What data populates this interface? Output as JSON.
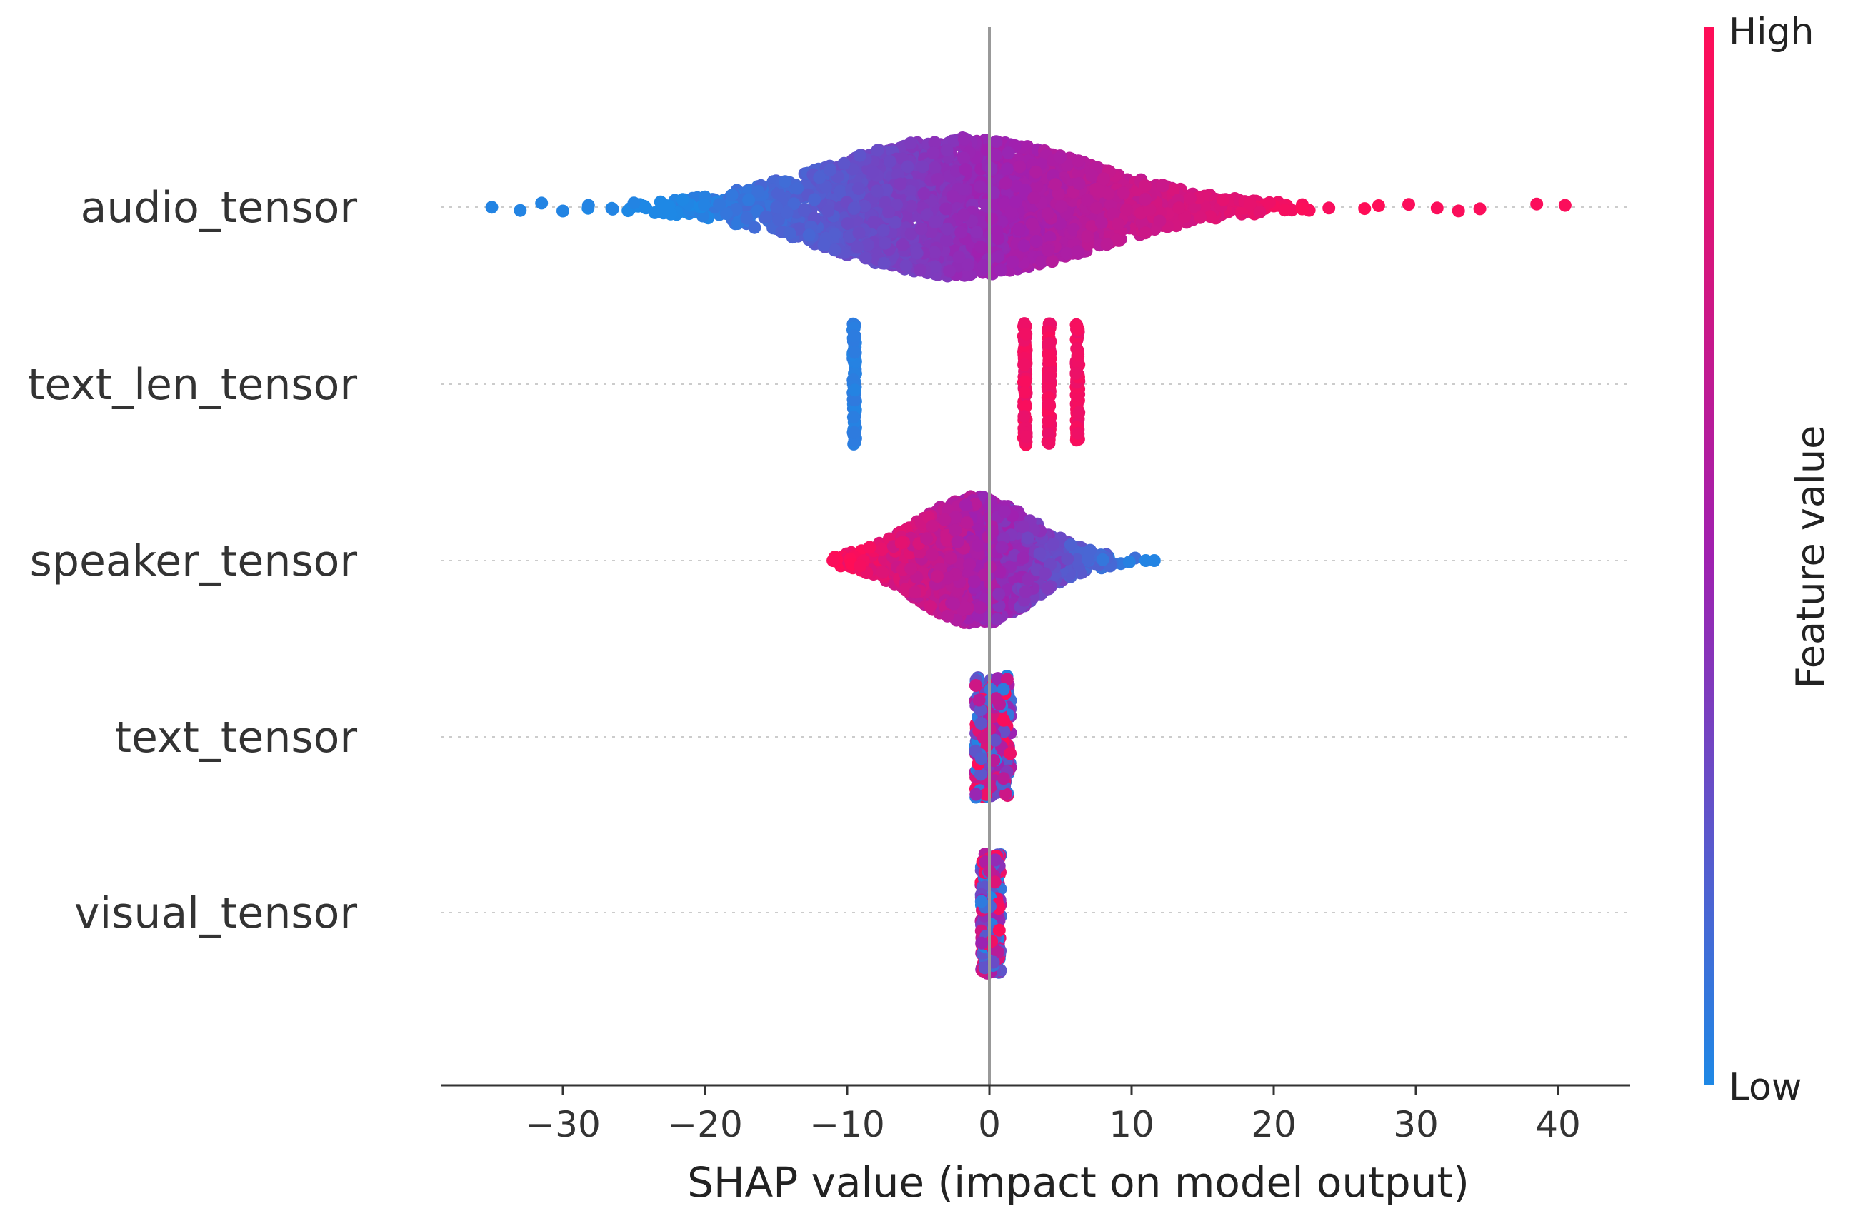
{
  "chart_data": {
    "type": "scatter",
    "subtype": "shap-beeswarm",
    "xlabel": "SHAP value (impact on model output)",
    "xlim": [
      -38.5,
      45
    ],
    "xticks": [
      -30,
      -20,
      -10,
      0,
      10,
      20,
      30,
      40
    ],
    "xtick_labels": [
      "−30",
      "−20",
      "−10",
      "0",
      "10",
      "20",
      "30",
      "40"
    ],
    "colorbar": {
      "title": "Feature value",
      "high_label": "High",
      "low_label": "Low",
      "low_color": "#1E88E5",
      "mid_color": "#A020B0",
      "high_color": "#FF0D57"
    },
    "features": [
      {
        "name": "audio_tensor",
        "shape": "wide",
        "range": [
          -35,
          40.5
        ],
        "peak_density": 1.0,
        "color_trend": "low-to-high"
      },
      {
        "name": "text_len_tensor",
        "shape": "clusters",
        "clusters": [
          -9.5,
          2.5,
          4.2,
          6.2
        ],
        "cluster_colors": [
          "low",
          "high",
          "high",
          "high"
        ]
      },
      {
        "name": "speaker_tensor",
        "shape": "medium",
        "range": [
          -11,
          11.5
        ],
        "center": -1.5,
        "color_trend": "high-to-low"
      },
      {
        "name": "text_tensor",
        "shape": "narrow",
        "range": [
          -1,
          1.5
        ],
        "center": 0
      },
      {
        "name": "visual_tensor",
        "shape": "narrow",
        "range": [
          -0.6,
          0.8
        ],
        "center": 0
      }
    ]
  }
}
